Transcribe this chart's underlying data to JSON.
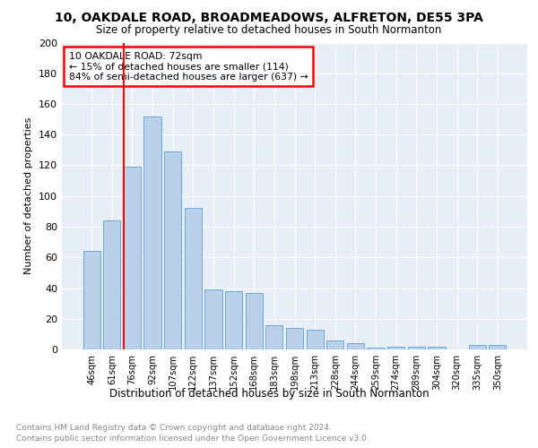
{
  "title1": "10, OAKDALE ROAD, BROADMEADOWS, ALFRETON, DE55 3PA",
  "title2": "Size of property relative to detached houses in South Normanton",
  "xlabel": "Distribution of detached houses by size in South Normanton",
  "ylabel": "Number of detached properties",
  "footnote1": "Contains HM Land Registry data © Crown copyright and database right 2024.",
  "footnote2": "Contains public sector information licensed under the Open Government Licence v3.0.",
  "bar_labels": [
    "46sqm",
    "61sqm",
    "76sqm",
    "92sqm",
    "107sqm",
    "122sqm",
    "137sqm",
    "152sqm",
    "168sqm",
    "183sqm",
    "198sqm",
    "213sqm",
    "228sqm",
    "244sqm",
    "259sqm",
    "274sqm",
    "289sqm",
    "304sqm",
    "320sqm",
    "335sqm",
    "350sqm"
  ],
  "bar_values": [
    64,
    84,
    119,
    152,
    129,
    92,
    39,
    38,
    37,
    16,
    14,
    13,
    6,
    4,
    1,
    2,
    2,
    2,
    0,
    3,
    3
  ],
  "bar_color": "#b8d0ea",
  "bar_edge_color": "#6aaad4",
  "annotation_title": "10 OAKDALE ROAD: 72sqm",
  "annotation_line1": "← 15% of detached houses are smaller (114)",
  "annotation_line2": "84% of semi-detached houses are larger (637) →",
  "ylim": [
    0,
    200
  ],
  "yticks": [
    0,
    20,
    40,
    60,
    80,
    100,
    120,
    140,
    160,
    180,
    200
  ],
  "fig_bg": "#ffffff",
  "axes_bg": "#e8eef5",
  "grid_color": "#ffffff",
  "bar_width": 0.85,
  "redline_index": 2
}
